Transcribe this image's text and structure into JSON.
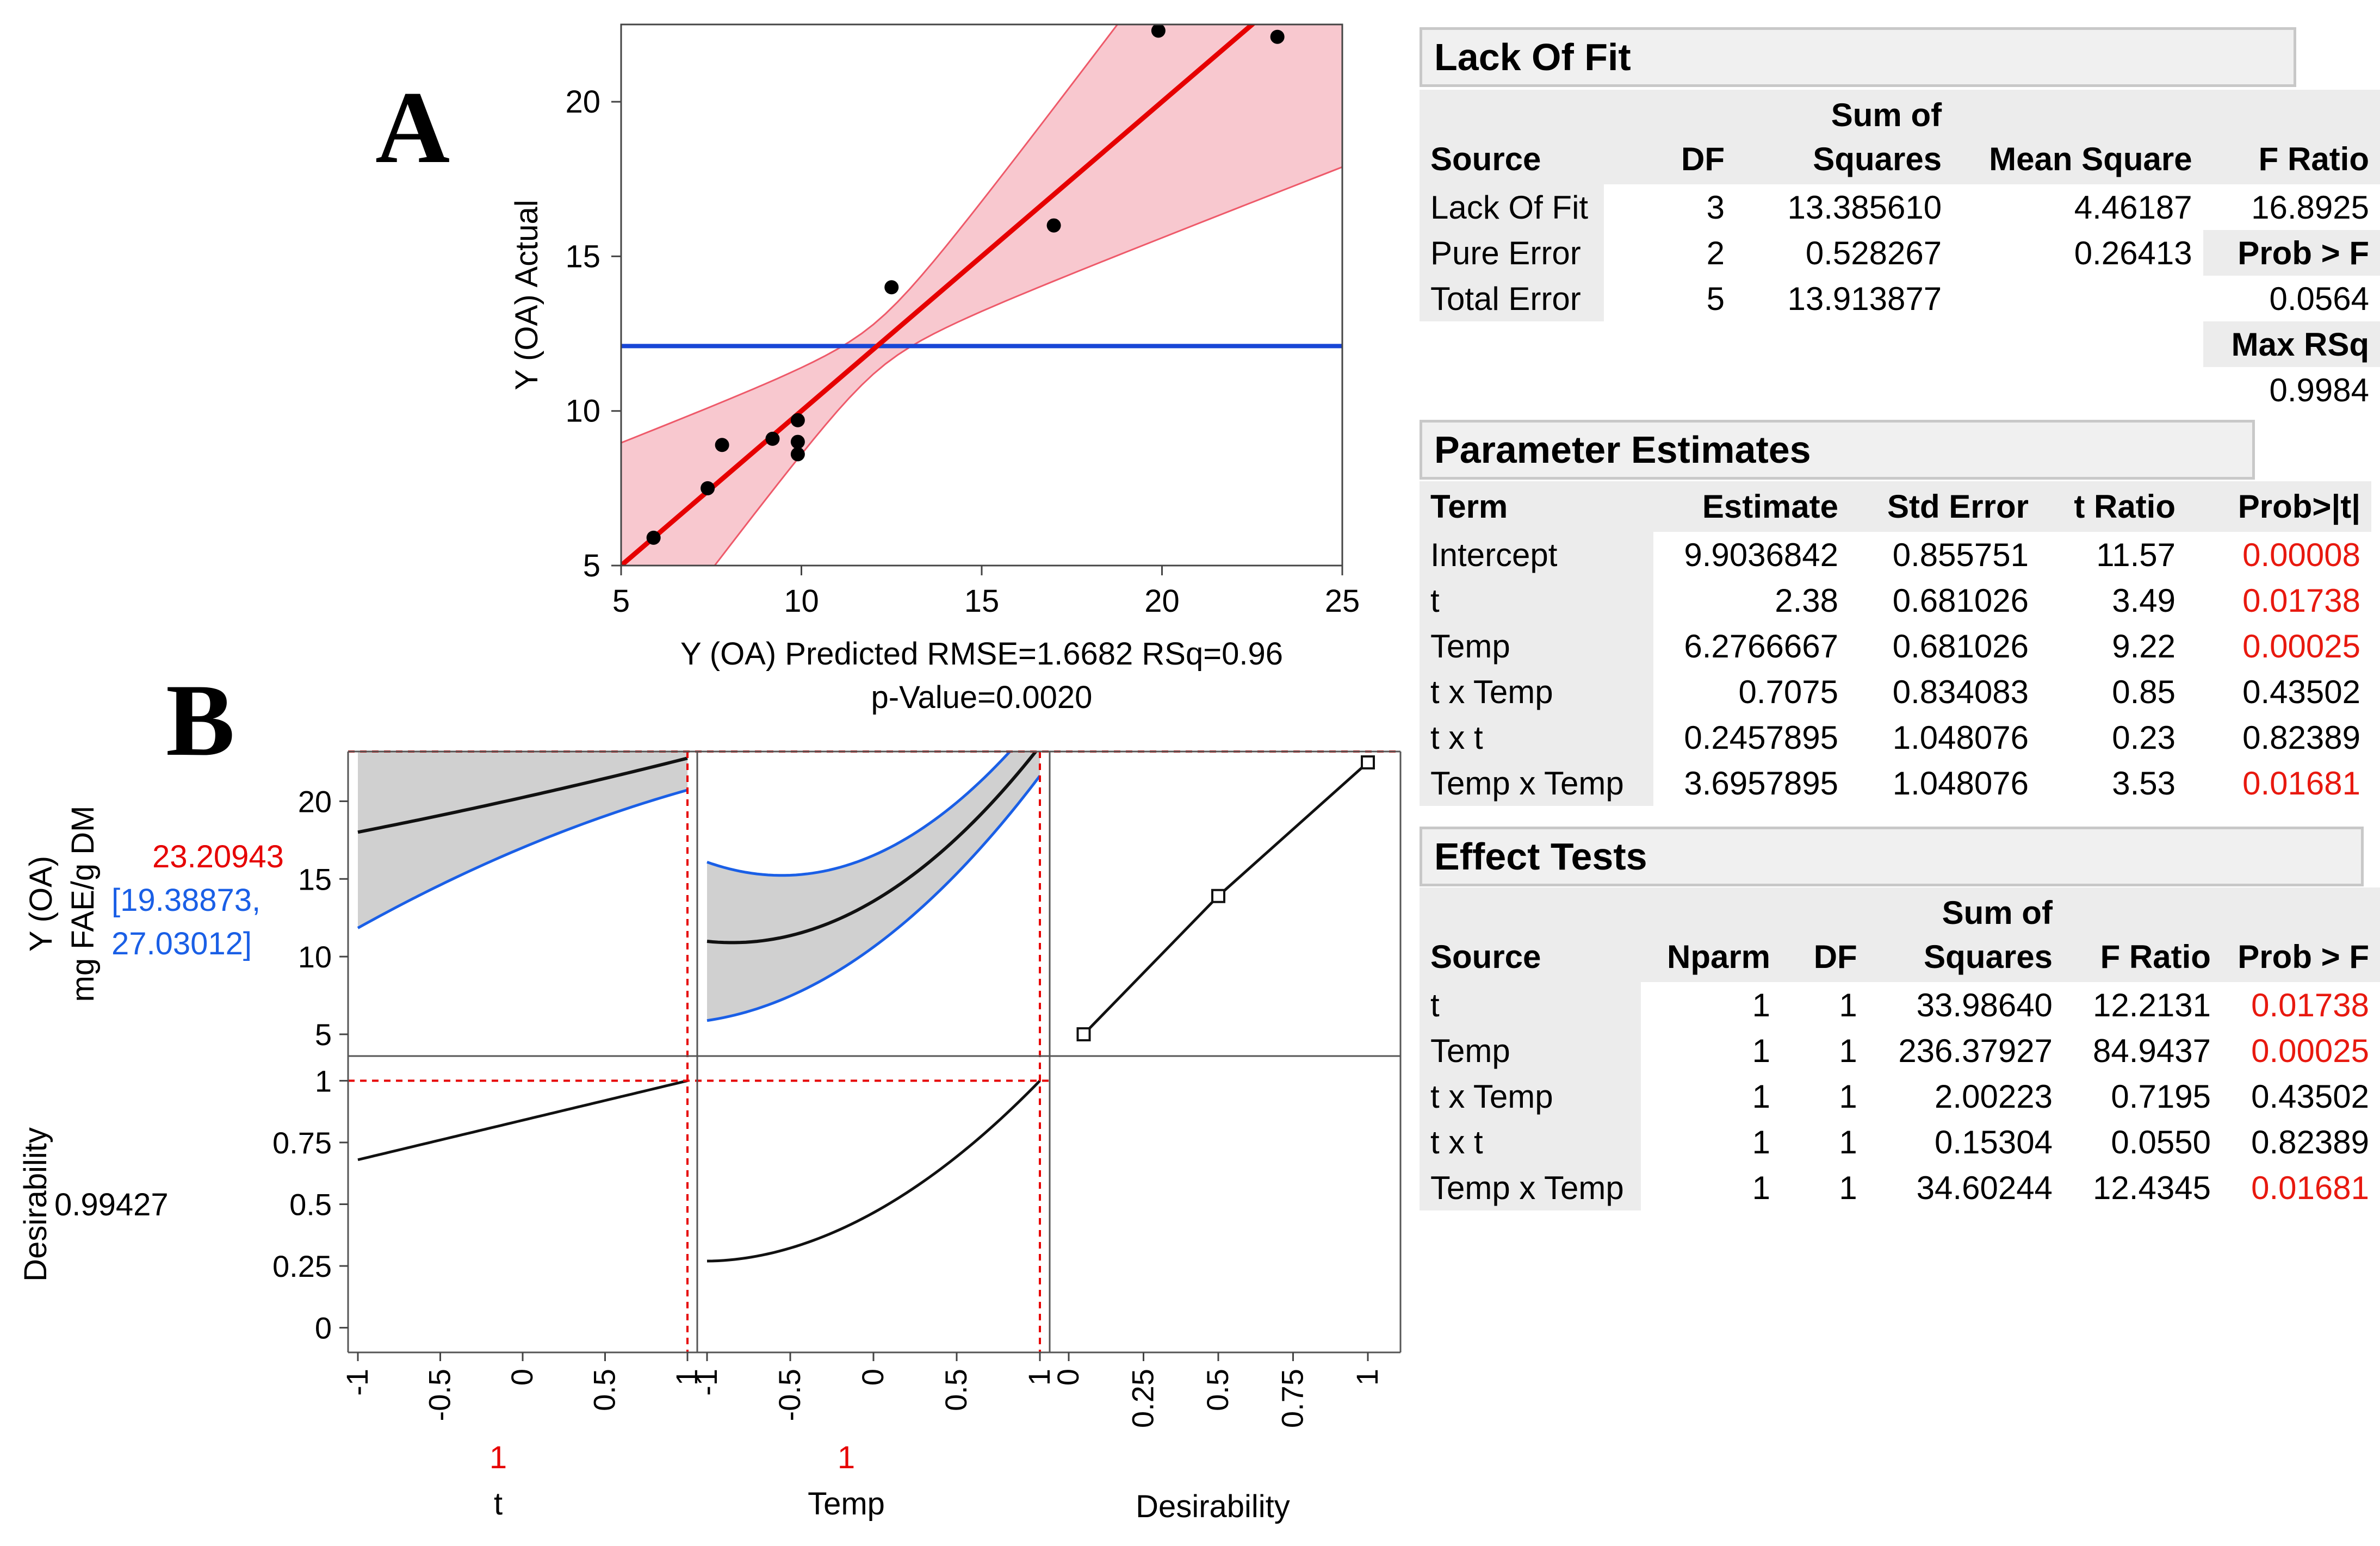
{
  "panel_labels": {
    "a": "A",
    "b": "B"
  },
  "colors": {
    "fit_line": "#e60000",
    "fit_band": "#f8c8cf",
    "mean_line": "#1846d6",
    "ci_band": "#d0d0d0",
    "ci_line": "#1a5fe6",
    "ref_line": "#e60000"
  },
  "chart_data": [
    {
      "id": "actual-by-predicted",
      "type": "scatter",
      "xlabel": "Y (OA) Predicted RMSE=1.6682 RSq=0.96",
      "xlabel2": "p-Value=0.0020",
      "ylabel": "Y (OA) Actual",
      "xlim": [
        5,
        25
      ],
      "ylim": [
        5,
        22.5
      ],
      "xticks": [
        "5",
        "10",
        "15",
        "20",
        "25"
      ],
      "yticks": [
        "5",
        "10",
        "15",
        "20"
      ],
      "mean_y": 12.1,
      "points": [
        [
          5.9,
          5.9
        ],
        [
          7.4,
          7.5
        ],
        [
          7.8,
          8.9
        ],
        [
          9.2,
          9.1
        ],
        [
          9.9,
          9.7
        ],
        [
          9.9,
          9.0
        ],
        [
          9.9,
          8.6
        ],
        [
          12.5,
          14.0
        ],
        [
          17.0,
          16.0
        ],
        [
          19.9,
          22.3
        ],
        [
          23.2,
          22.1
        ]
      ]
    },
    {
      "id": "prediction-profiler",
      "type": "line",
      "response_label_1": "Y (OA)",
      "response_label_2": "mg FAE/g DM",
      "predicted_value": "23.20943",
      "ci_label_1": "[19.38873,",
      "ci_label_2": "27.03012]",
      "desirability_label": "Desirability",
      "desirability_value": "0.99427",
      "y_top_ticks": [
        "5",
        "10",
        "15",
        "20"
      ],
      "y_bottom_ticks": [
        "0",
        "0.25",
        "0.5",
        "0.75",
        "1"
      ],
      "factor_ticks": [
        "-1",
        "-0.5",
        "0",
        "0.5",
        "1"
      ],
      "desirability_ticks": [
        "0",
        "0.25",
        "0.5",
        "0.75",
        "1"
      ],
      "factors": [
        {
          "name": "t",
          "setting": "1"
        },
        {
          "name": "Temp",
          "setting": "1"
        }
      ],
      "x_axis_title_3": "Desirability",
      "y_top_range": [
        3.6,
        23.2
      ],
      "y_bottom_range": [
        -0.1,
        1.1
      ],
      "desirability_points": [
        [
          0.05,
          5.0
        ],
        [
          0.5,
          13.9
        ],
        [
          1.0,
          22.5
        ]
      ]
    }
  ],
  "lack_of_fit": {
    "title": "Lack Of Fit",
    "headers": [
      [
        "",
        "Source"
      ],
      [
        "",
        "DF"
      ],
      [
        "Sum of",
        "Squares"
      ],
      [
        "",
        "Mean Square"
      ],
      [
        "",
        "F Ratio"
      ]
    ],
    "rows": [
      [
        "Lack Of Fit",
        "3",
        "13.385610",
        "4.46187",
        "16.8925"
      ],
      [
        "Pure Error",
        "2",
        "0.528267",
        "0.26413",
        "Prob > F"
      ],
      [
        "Total Error",
        "5",
        "13.913877",
        "",
        "0.0564"
      ],
      [
        "",
        "",
        "",
        "",
        "Max RSq"
      ],
      [
        "",
        "",
        "",
        "",
        "0.9984"
      ]
    ]
  },
  "parameter_estimates": {
    "title": "Parameter Estimates",
    "headers": [
      "Term",
      "Estimate",
      "Std Error",
      "t Ratio",
      "Prob>|t|"
    ],
    "rows": [
      [
        "Intercept",
        "9.9036842",
        "0.855751",
        "11.57",
        "0.00008"
      ],
      [
        "t",
        "2.38",
        "0.681026",
        "3.49",
        "0.01738"
      ],
      [
        "Temp",
        "6.2766667",
        "0.681026",
        "9.22",
        "0.00025"
      ],
      [
        "t x Temp",
        "0.7075",
        "0.834083",
        "0.85",
        "0.43502"
      ],
      [
        "t x t",
        "0.2457895",
        "1.048076",
        "0.23",
        "0.82389"
      ],
      [
        "Temp x Temp",
        "3.6957895",
        "1.048076",
        "3.53",
        "0.01681"
      ]
    ],
    "significant": [
      true,
      true,
      true,
      false,
      false,
      true
    ]
  },
  "effect_tests": {
    "title": "Effect Tests",
    "headers": [
      [
        "",
        "Source"
      ],
      [
        "",
        "Nparm"
      ],
      [
        "",
        "DF"
      ],
      [
        "Sum of",
        "Squares"
      ],
      [
        "",
        "F Ratio"
      ],
      [
        "",
        "Prob > F"
      ]
    ],
    "rows": [
      [
        "t",
        "1",
        "1",
        "33.98640",
        "12.2131",
        "0.01738"
      ],
      [
        "Temp",
        "1",
        "1",
        "236.37927",
        "84.9437",
        "0.00025"
      ],
      [
        "t x Temp",
        "1",
        "1",
        "2.00223",
        "0.7195",
        "0.43502"
      ],
      [
        "t x t",
        "1",
        "1",
        "0.15304",
        "0.0550",
        "0.82389"
      ],
      [
        "Temp x Temp",
        "1",
        "1",
        "34.60244",
        "12.4345",
        "0.01681"
      ]
    ],
    "significant": [
      true,
      true,
      false,
      false,
      true
    ]
  }
}
